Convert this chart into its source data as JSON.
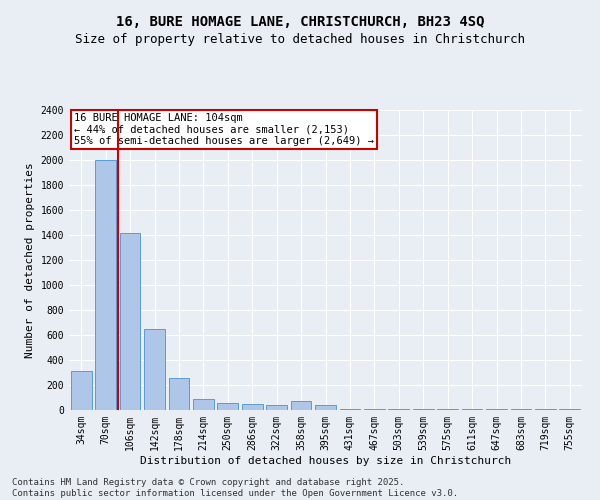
{
  "title_line1": "16, BURE HOMAGE LANE, CHRISTCHURCH, BH23 4SQ",
  "title_line2": "Size of property relative to detached houses in Christchurch",
  "xlabel": "Distribution of detached houses by size in Christchurch",
  "ylabel": "Number of detached properties",
  "categories": [
    "34sqm",
    "70sqm",
    "106sqm",
    "142sqm",
    "178sqm",
    "214sqm",
    "250sqm",
    "286sqm",
    "322sqm",
    "358sqm",
    "395sqm",
    "431sqm",
    "467sqm",
    "503sqm",
    "539sqm",
    "575sqm",
    "611sqm",
    "647sqm",
    "683sqm",
    "719sqm",
    "755sqm"
  ],
  "bar_values": [
    310,
    2000,
    1420,
    650,
    260,
    90,
    60,
    50,
    40,
    70,
    40,
    10,
    10,
    10,
    5,
    5,
    5,
    5,
    5,
    5,
    5
  ],
  "bar_color": "#aec6e8",
  "bar_edge_color": "#5b9bd5",
  "vline_color": "#cc0000",
  "annotation_text": "16 BURE HOMAGE LANE: 104sqm\n← 44% of detached houses are smaller (2,153)\n55% of semi-detached houses are larger (2,649) →",
  "annotation_box_color": "#ffffff",
  "annotation_box_edge_color": "#cc0000",
  "ylim": [
    0,
    2400
  ],
  "yticks": [
    0,
    200,
    400,
    600,
    800,
    1000,
    1200,
    1400,
    1600,
    1800,
    2000,
    2200,
    2400
  ],
  "background_color": "#e8eef4",
  "plot_bg_color": "#e8eef4",
  "footer_text": "Contains HM Land Registry data © Crown copyright and database right 2025.\nContains public sector information licensed under the Open Government Licence v3.0.",
  "title_fontsize": 10,
  "subtitle_fontsize": 9,
  "axis_label_fontsize": 8,
  "tick_fontsize": 7,
  "annotation_fontsize": 7.5,
  "footer_fontsize": 6.5
}
